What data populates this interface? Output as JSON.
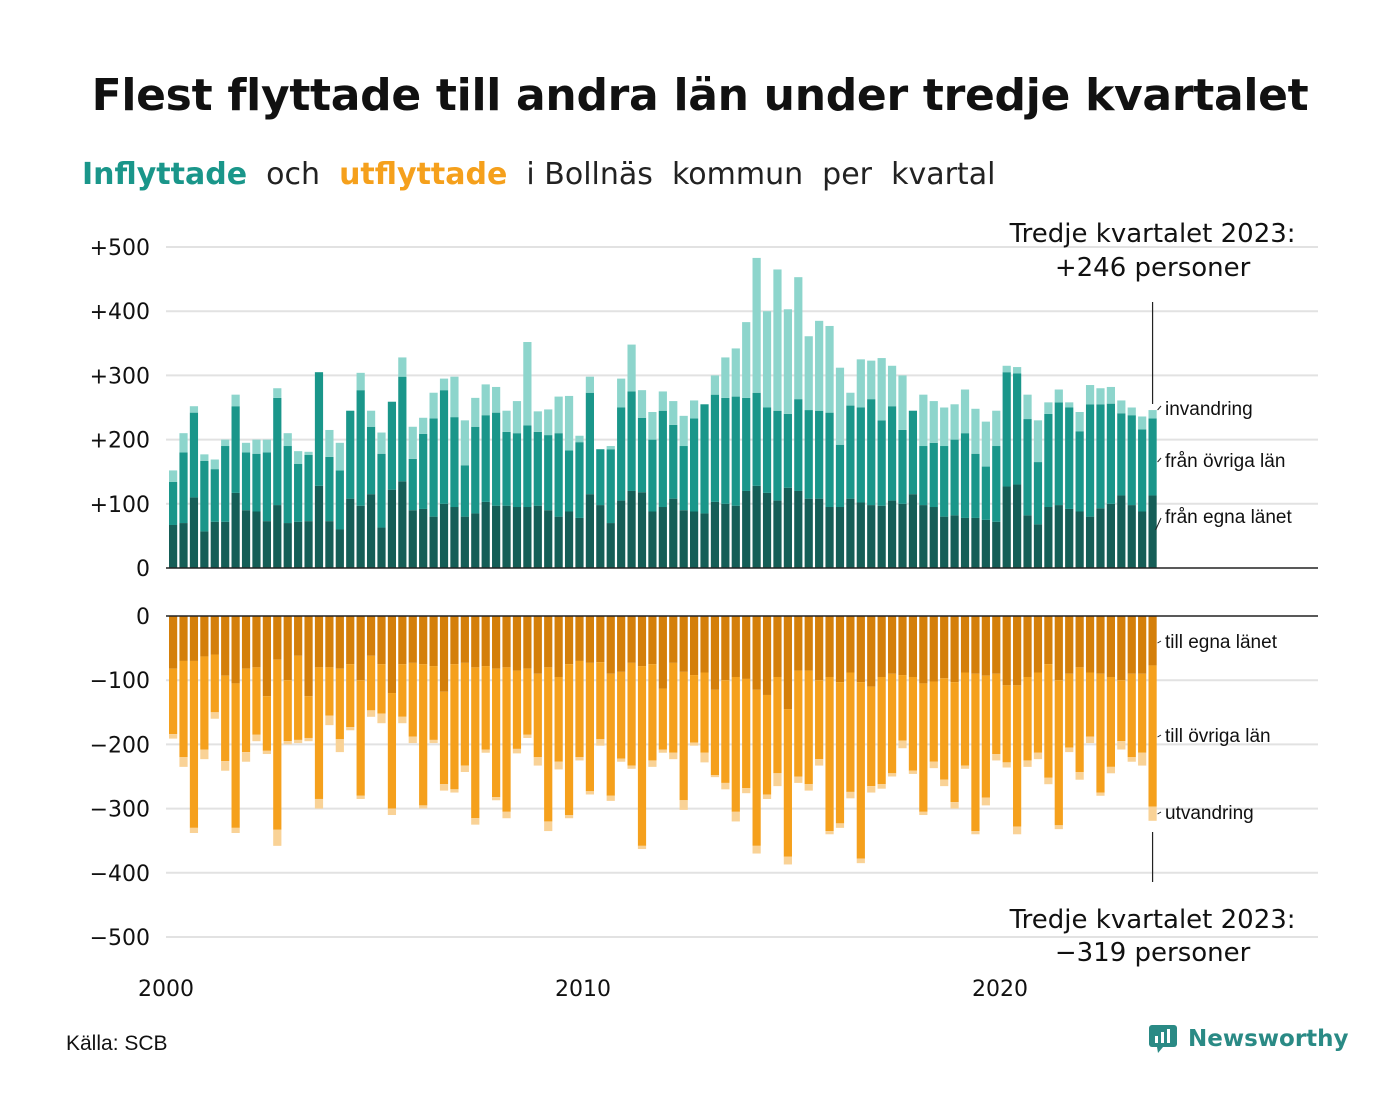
{
  "title": "Flest flyttade till andra län under tredje kvartalet",
  "subtitle": {
    "in_word": "Inflyttade",
    "mid": "  och  ",
    "out_word": "utflyttade",
    "rest": "  i Bollnäs  kommun  per  kvartal"
  },
  "colors": {
    "in_own": "#155e57",
    "in_other": "#1a968a",
    "in_abroad": "#8dd5cc",
    "out_own": "#d47f0a",
    "out_other": "#f5a01c",
    "out_abroad": "#f9d296",
    "grid": "#e2e2e2",
    "subtitle_in": "#1a968a",
    "subtitle_out": "#f5a01c"
  },
  "source": "Källa: SCB",
  "brand": {
    "name": "Newsworthy",
    "icon": "newsworthy-logo-icon"
  },
  "chart_data": {
    "type": "bar",
    "layout": "stacked, two panels (inflows up, outflows down)",
    "x_start": "2000 Q1",
    "x_ticks": [
      "2000",
      "2010",
      "2020"
    ],
    "y_ticks_in": [
      "0",
      "+100",
      "+200",
      "+300",
      "+400",
      "+500"
    ],
    "y_ticks_out": [
      "0",
      "−100",
      "−200",
      "−300",
      "−400",
      "−500"
    ],
    "ylim_in": [
      0,
      500
    ],
    "ylim_out": [
      -500,
      0
    ],
    "grid": true,
    "annotation_in": [
      "Tredje kvartalet 2023:",
      "+246 personer"
    ],
    "annotation_out": [
      "Tredje kvartalet 2023:",
      "−319 personer"
    ],
    "labels_in": [
      "invandring",
      "från övriga län",
      "från egna länet"
    ],
    "labels_out": [
      "till egna länet",
      "till övriga län",
      "utvandring"
    ],
    "inflow": {
      "from_own_county": [
        67,
        70,
        110,
        57,
        72,
        72,
        117,
        90,
        88,
        73,
        98,
        70,
        72,
        73,
        128,
        73,
        60,
        108,
        97,
        115,
        63,
        122,
        135,
        90,
        92,
        80,
        100,
        95,
        80,
        85,
        103,
        97,
        97,
        95,
        95,
        97,
        90,
        80,
        88,
        78,
        115,
        98,
        70,
        105,
        120,
        118,
        88,
        95,
        108,
        90,
        88,
        85,
        103,
        100,
        97,
        120,
        128,
        117,
        105,
        125,
        120,
        108,
        108,
        95,
        95,
        108,
        102,
        98,
        97,
        105,
        100,
        115,
        98,
        95,
        80,
        82,
        78,
        78,
        75,
        72,
        127,
        130,
        82,
        68,
        95,
        98,
        92,
        88,
        80,
        93,
        100,
        113,
        98,
        88,
        113
      ],
      "from_other_counties": [
        67,
        110,
        132,
        110,
        82,
        118,
        135,
        90,
        90,
        107,
        167,
        120,
        90,
        103,
        177,
        100,
        92,
        137,
        180,
        105,
        115,
        137,
        163,
        80,
        117,
        153,
        177,
        140,
        80,
        135,
        135,
        145,
        115,
        115,
        127,
        115,
        117,
        130,
        95,
        118,
        158,
        87,
        115,
        145,
        155,
        116,
        112,
        150,
        115,
        100,
        145,
        170,
        167,
        165,
        170,
        145,
        145,
        133,
        140,
        115,
        143,
        138,
        137,
        147,
        97,
        145,
        148,
        165,
        133,
        147,
        115,
        130,
        92,
        100,
        110,
        118,
        132,
        100,
        83,
        118,
        178,
        173,
        150,
        97,
        145,
        160,
        158,
        125,
        175,
        162,
        156,
        128,
        140,
        128,
        120
      ],
      "abroad": [
        18,
        30,
        10,
        10,
        15,
        10,
        18,
        15,
        22,
        20,
        15,
        20,
        20,
        5,
        0,
        42,
        43,
        0,
        27,
        25,
        33,
        0,
        30,
        50,
        25,
        40,
        18,
        63,
        70,
        45,
        48,
        40,
        33,
        50,
        130,
        32,
        40,
        57,
        85,
        10,
        25,
        0,
        5,
        45,
        73,
        43,
        43,
        30,
        37,
        47,
        28,
        0,
        30,
        63,
        75,
        118,
        210,
        150,
        220,
        163,
        190,
        115,
        140,
        135,
        120,
        20,
        75,
        60,
        97,
        63,
        85,
        0,
        80,
        65,
        60,
        55,
        68,
        70,
        70,
        55,
        10,
        10,
        38,
        65,
        18,
        20,
        8,
        30,
        30,
        25,
        26,
        20,
        12,
        20,
        13
      ]
    },
    "outflow": {
      "to_own_county": [
        82,
        70,
        70,
        63,
        60,
        93,
        105,
        82,
        80,
        125,
        68,
        100,
        62,
        125,
        80,
        80,
        82,
        75,
        100,
        62,
        75,
        120,
        75,
        73,
        75,
        78,
        118,
        75,
        73,
        80,
        78,
        82,
        80,
        85,
        82,
        90,
        80,
        95,
        75,
        70,
        73,
        72,
        90,
        87,
        73,
        78,
        75,
        113,
        73,
        87,
        92,
        88,
        115,
        100,
        95,
        98,
        115,
        123,
        95,
        145,
        85,
        85,
        100,
        95,
        103,
        88,
        103,
        110,
        95,
        90,
        92,
        95,
        105,
        102,
        97,
        103,
        88,
        90,
        93,
        90,
        108,
        108,
        95,
        88,
        75,
        100,
        90,
        80,
        88,
        90,
        95,
        100,
        90,
        90,
        77
      ],
      "to_other_counties": [
        102,
        150,
        260,
        145,
        90,
        133,
        225,
        130,
        105,
        85,
        265,
        95,
        131,
        65,
        205,
        75,
        110,
        98,
        180,
        85,
        77,
        180,
        82,
        115,
        220,
        115,
        144,
        195,
        160,
        235,
        130,
        200,
        225,
        122,
        103,
        130,
        240,
        132,
        235,
        150,
        200,
        120,
        190,
        135,
        160,
        280,
        150,
        95,
        140,
        200,
        105,
        125,
        133,
        160,
        210,
        170,
        243,
        155,
        150,
        230,
        165,
        177,
        123,
        240,
        220,
        186,
        275,
        155,
        167,
        155,
        102,
        146,
        200,
        125,
        158,
        187,
        145,
        245,
        190,
        125,
        120,
        220,
        130,
        125,
        177,
        226,
        115,
        163,
        100,
        185,
        140,
        95,
        130,
        123,
        220
      ],
      "abroad": [
        7,
        15,
        8,
        15,
        10,
        15,
        8,
        15,
        10,
        5,
        25,
        5,
        5,
        5,
        15,
        15,
        20,
        5,
        5,
        10,
        15,
        10,
        10,
        10,
        5,
        5,
        10,
        5,
        10,
        10,
        5,
        5,
        10,
        7,
        5,
        13,
        15,
        12,
        5,
        5,
        5,
        10,
        8,
        5,
        5,
        5,
        10,
        5,
        10,
        15,
        5,
        15,
        3,
        10,
        15,
        8,
        12,
        7,
        20,
        12,
        10,
        10,
        10,
        5,
        7,
        10,
        7,
        10,
        7,
        5,
        12,
        5,
        5,
        10,
        10,
        10,
        5,
        5,
        12,
        10,
        8,
        12,
        10,
        10,
        10,
        6,
        7,
        12,
        10,
        5,
        10,
        13,
        7,
        20,
        22
      ]
    }
  }
}
